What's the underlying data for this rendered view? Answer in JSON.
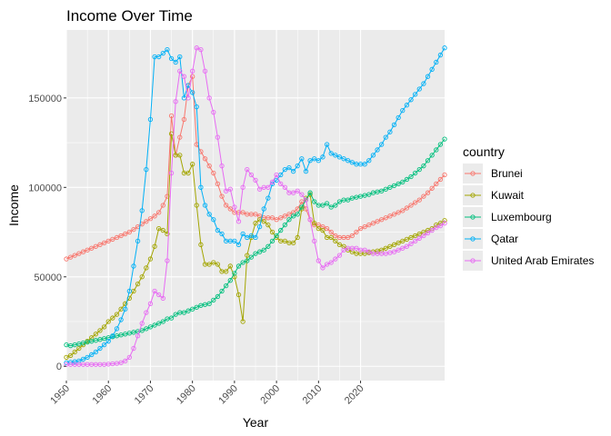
{
  "chart_data": {
    "type": "line",
    "title": "Income Over Time",
    "xlabel": "Year",
    "ylabel": "Income",
    "xlim": [
      1950,
      2040
    ],
    "ylim": [
      -8000,
      188000
    ],
    "x_ticks": [
      1950,
      1960,
      1970,
      1980,
      1990,
      2000,
      2010,
      2020
    ],
    "y_ticks": [
      0,
      50000,
      100000,
      150000
    ],
    "y_tick_labels": [
      "0",
      "50000",
      "100000",
      "150000"
    ],
    "grid": true,
    "legend": {
      "title": "country",
      "position": "right"
    },
    "x": [
      1950,
      1951,
      1952,
      1953,
      1954,
      1955,
      1956,
      1957,
      1958,
      1959,
      1960,
      1961,
      1962,
      1963,
      1964,
      1965,
      1966,
      1967,
      1968,
      1969,
      1970,
      1971,
      1972,
      1973,
      1974,
      1975,
      1976,
      1977,
      1978,
      1979,
      1980,
      1981,
      1982,
      1983,
      1984,
      1985,
      1986,
      1987,
      1988,
      1989,
      1990,
      1991,
      1992,
      1993,
      1994,
      1995,
      1996,
      1997,
      1998,
      1999,
      2000,
      2001,
      2002,
      2003,
      2004,
      2005,
      2006,
      2007,
      2008,
      2009,
      2010,
      2011,
      2012,
      2013,
      2014,
      2015,
      2016,
      2017,
      2018,
      2019,
      2020,
      2021,
      2022,
      2023,
      2024,
      2025,
      2026,
      2027,
      2028,
      2029,
      2030,
      2031,
      2032,
      2033,
      2034,
      2035,
      2036,
      2037,
      2038,
      2039,
      2040
    ],
    "series": [
      {
        "name": "Brunei",
        "color": "#F8766D",
        "values": [
          60000,
          61000,
          62000,
          63000,
          64000,
          65000,
          66000,
          67000,
          68000,
          69000,
          70000,
          71000,
          72000,
          73000,
          74000,
          75000,
          76500,
          78000,
          79500,
          81000,
          82500,
          84000,
          86000,
          90000,
          95000,
          140000,
          118000,
          128000,
          138000,
          157000,
          162000,
          124000,
          120000,
          116000,
          112000,
          108000,
          102000,
          95000,
          90000,
          88000,
          86000,
          86000,
          86000,
          85000,
          85000,
          85000,
          84000,
          83000,
          83000,
          83000,
          82000,
          83000,
          84000,
          85000,
          86000,
          88000,
          92000,
          88000,
          82000,
          79000,
          79000,
          78000,
          77000,
          75000,
          73000,
          72000,
          72000,
          72000,
          73000,
          75000,
          77000,
          78000,
          79000,
          80000,
          81000,
          82000,
          83000,
          84000,
          85000,
          86000,
          87000,
          88500,
          90000,
          91500,
          93000,
          95000,
          97000,
          99500,
          102000,
          104500,
          107000
        ]
      },
      {
        "name": "Kuwait",
        "color": "#A3A500",
        "values": [
          5000,
          6000,
          8000,
          10000,
          12000,
          14000,
          16000,
          18000,
          20000,
          22000,
          25000,
          27000,
          29000,
          32000,
          35000,
          38000,
          42000,
          46000,
          50000,
          55000,
          60000,
          67000,
          77000,
          76000,
          74000,
          130000,
          118000,
          118000,
          108000,
          108000,
          113000,
          90000,
          68000,
          57000,
          57000,
          58000,
          57000,
          53000,
          53000,
          56000,
          50000,
          40000,
          25000,
          62000,
          72000,
          80000,
          82000,
          81000,
          79000,
          75000,
          72000,
          70000,
          70000,
          69000,
          69000,
          72000,
          88000,
          94000,
          96000,
          80000,
          77000,
          76000,
          72000,
          72000,
          70000,
          68000,
          67000,
          65000,
          64000,
          63000,
          63000,
          63000,
          63500,
          64000,
          64500,
          65000,
          66000,
          67000,
          68000,
          69000,
          70000,
          71000,
          72000,
          73000,
          74000,
          75000,
          76000,
          77000,
          79000,
          80000,
          81500
        ]
      },
      {
        "name": "Luxembourg",
        "color": "#00BF7D",
        "values": [
          12000,
          11500,
          12000,
          12500,
          13000,
          13500,
          14000,
          14500,
          15000,
          15500,
          16000,
          16500,
          17000,
          17500,
          18000,
          18500,
          19000,
          19500,
          20000,
          21000,
          22000,
          23000,
          24000,
          25000,
          26500,
          27000,
          29000,
          30000,
          30000,
          31000,
          32000,
          33000,
          34000,
          34500,
          35000,
          37000,
          39000,
          42000,
          45000,
          48000,
          52000,
          56000,
          58000,
          59000,
          61000,
          63000,
          64000,
          65000,
          67000,
          70000,
          73000,
          76000,
          79000,
          82000,
          84000,
          85000,
          89000,
          93000,
          97000,
          92000,
          90000,
          90000,
          91000,
          89000,
          90000,
          92000,
          93000,
          93000,
          94000,
          94500,
          95000,
          95500,
          96000,
          97000,
          97500,
          98000,
          99000,
          100000,
          101000,
          102000,
          103000,
          104500,
          106000,
          108000,
          110000,
          112000,
          115000,
          118000,
          121000,
          124000,
          127000
        ]
      },
      {
        "name": "Qatar",
        "color": "#00B0F6",
        "values": [
          2000,
          2200,
          2600,
          3000,
          4000,
          5000,
          6500,
          8000,
          10000,
          12000,
          14000,
          17000,
          21000,
          26000,
          32000,
          42000,
          56000,
          70000,
          87000,
          110000,
          138000,
          173000,
          173000,
          175000,
          177000,
          172000,
          170000,
          173000,
          150000,
          157000,
          153000,
          145000,
          100000,
          90000,
          85000,
          82000,
          76000,
          74000,
          70000,
          70000,
          70000,
          68000,
          74000,
          72000,
          73000,
          72000,
          78000,
          88000,
          94000,
          102000,
          104000,
          107000,
          110000,
          111000,
          109000,
          112000,
          116000,
          109000,
          115000,
          116000,
          115000,
          117000,
          124000,
          119000,
          118000,
          117000,
          116000,
          115000,
          114000,
          113000,
          113000,
          113000,
          115000,
          118000,
          121000,
          124000,
          128000,
          131000,
          135000,
          139000,
          143000,
          146000,
          149000,
          152000,
          155000,
          158000,
          162000,
          166000,
          170000,
          174000,
          178000
        ]
      },
      {
        "name": "United Arab Emirates",
        "color": "#E76BF3",
        "values": [
          1000,
          1000,
          1000,
          1000,
          1000,
          1000,
          1000,
          1000,
          1000,
          1000,
          1200,
          1400,
          1600,
          2000,
          3000,
          5000,
          10000,
          17000,
          24000,
          30000,
          35000,
          42000,
          40000,
          38000,
          59000,
          108000,
          148000,
          165000,
          162000,
          150000,
          165000,
          178000,
          177000,
          165000,
          150000,
          142000,
          128000,
          112000,
          98000,
          99000,
          89000,
          81000,
          100000,
          110000,
          107000,
          104000,
          99000,
          100000,
          100000,
          103000,
          107000,
          102000,
          100000,
          97000,
          97000,
          98000,
          96000,
          93000,
          82000,
          70000,
          59000,
          55000,
          57000,
          58000,
          60000,
          62000,
          65000,
          66000,
          66000,
          66000,
          65000,
          65000,
          64000,
          63000,
          63000,
          63000,
          63000,
          63500,
          64000,
          65000,
          66000,
          67000,
          68500,
          70000,
          71500,
          73000,
          74500,
          76000,
          77500,
          78500,
          80000
        ]
      }
    ]
  }
}
